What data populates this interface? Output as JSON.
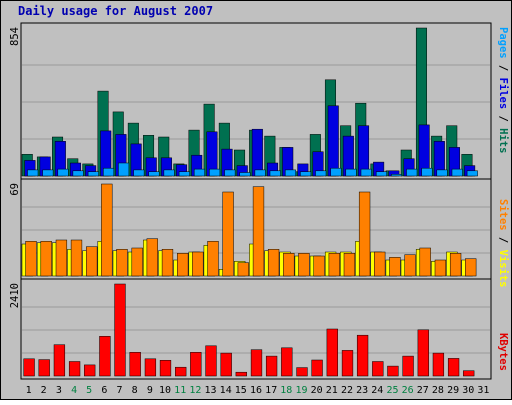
{
  "chart_data": [
    {
      "type": "bar",
      "title": "Daily usage for August 2007",
      "ymax_label": "854",
      "ylim": [
        0,
        854
      ],
      "categories": [
        "1",
        "2",
        "3",
        "4",
        "5",
        "6",
        "7",
        "8",
        "9",
        "10",
        "11",
        "12",
        "13",
        "14",
        "15",
        "16",
        "17",
        "18",
        "19",
        "20",
        "21",
        "22",
        "23",
        "24",
        "25",
        "26",
        "27",
        "28",
        "29",
        "30",
        "31"
      ],
      "weekend_days": [
        "4",
        "5",
        "11",
        "12",
        "18",
        "19",
        "25",
        "26"
      ],
      "right_label": [
        {
          "text": "Pages",
          "color": "#00a0ff"
        },
        {
          "text": " / ",
          "color": "#000000"
        },
        {
          "text": "Files",
          "color": "#0000e0"
        },
        {
          "text": " / ",
          "color": "#000000"
        },
        {
          "text": "Hits",
          "color": "#007050"
        }
      ],
      "series": [
        {
          "name": "Hits",
          "color": "#007050",
          "values": [
            125,
            110,
            225,
            100,
            70,
            490,
            370,
            305,
            235,
            225,
            70,
            265,
            415,
            305,
            150,
            265,
            230,
            165,
            25,
            240,
            555,
            290,
            420,
            70,
            30,
            150,
            854,
            230,
            290,
            125,
            0
          ]
        },
        {
          "name": "Files",
          "color": "#0000e0",
          "values": [
            90,
            110,
            200,
            75,
            60,
            260,
            240,
            185,
            105,
            105,
            65,
            120,
            255,
            155,
            60,
            270,
            75,
            165,
            70,
            140,
            405,
            230,
            290,
            80,
            30,
            100,
            295,
            200,
            165,
            60,
            0
          ]
        },
        {
          "name": "Pages",
          "color": "#00a0ff",
          "values": [
            35,
            35,
            40,
            30,
            25,
            45,
            75,
            35,
            25,
            35,
            25,
            40,
            40,
            35,
            20,
            35,
            30,
            35,
            25,
            30,
            45,
            40,
            40,
            25,
            10,
            40,
            45,
            35,
            40,
            30,
            0
          ]
        }
      ]
    },
    {
      "type": "bar",
      "ymax_label": "69",
      "ylim": [
        0,
        69
      ],
      "right_label": [
        {
          "text": "Sites",
          "color": "#ff8000"
        },
        {
          "text": " / ",
          "color": "#000000"
        },
        {
          "text": "Visits",
          "color": "#ffff00"
        }
      ],
      "series": [
        {
          "name": "Visits",
          "color": "#ffff00",
          "values": [
            24,
            25,
            25,
            20,
            19,
            26,
            19,
            18,
            27,
            19,
            12,
            18,
            23,
            5,
            11,
            24,
            19,
            18,
            15,
            15,
            18,
            18,
            26,
            18,
            12,
            12,
            20,
            11,
            18,
            12,
            0
          ]
        },
        {
          "name": "Sites",
          "color": "#ff8000",
          "values": [
            26,
            26,
            27,
            27,
            22,
            69,
            20,
            21,
            28,
            20,
            17,
            18,
            26,
            63,
            10,
            67,
            20,
            17,
            17,
            15,
            17,
            17,
            63,
            18,
            14,
            16,
            21,
            12,
            17,
            13,
            0
          ]
        }
      ]
    },
    {
      "type": "bar",
      "ymax_label": "2410",
      "ylim": [
        0,
        2410
      ],
      "right_label": [
        {
          "text": "KBytes",
          "color": "#e00000"
        }
      ],
      "series": [
        {
          "name": "KBytes",
          "color": "#ff0000",
          "values": [
            450,
            430,
            820,
            380,
            290,
            1040,
            2410,
            620,
            450,
            410,
            230,
            620,
            790,
            600,
            100,
            690,
            520,
            740,
            220,
            420,
            1230,
            670,
            1070,
            380,
            260,
            520,
            1210,
            600,
            460,
            140,
            0
          ]
        }
      ]
    }
  ]
}
